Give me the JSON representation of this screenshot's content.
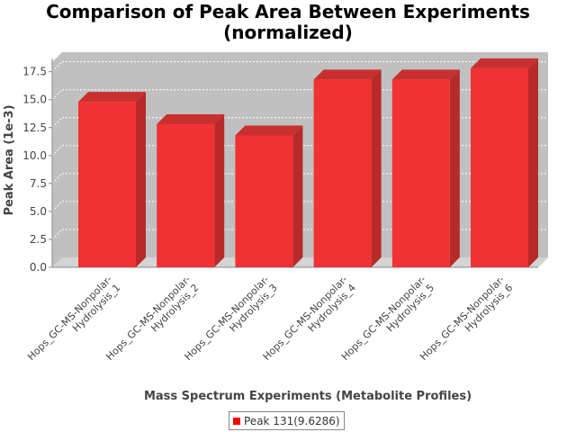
{
  "chart_data": {
    "type": "bar",
    "title_line1": "Comparison of Peak Area Between Experiments",
    "title_line2": "(normalized)",
    "xlabel": "Mass Spectrum Experiments (Metabolite Profiles)",
    "ylabel": "Peak Area (1e-3)",
    "categories": [
      [
        "Hops_GC-MS-Nonpolar-",
        "Hydrolysis_1"
      ],
      [
        "Hops_GC-MS-Nonpolar-",
        "Hydrolysis_2"
      ],
      [
        "Hops_GC-MS-Nonpolar-",
        "Hydrolysis_3"
      ],
      [
        "Hops_GC-MS-Nonpolar-",
        "Hydrolysis_4"
      ],
      [
        "Hops_GC-MS-Nonpolar-",
        "Hydrolysis_5"
      ],
      [
        "Hops_GC-MS-Nonpolar-",
        "Hydrolysis_6"
      ]
    ],
    "series": [
      {
        "name": "Peak 131(9.6286)",
        "values": [
          14.8,
          12.8,
          11.8,
          16.8,
          16.8,
          17.8
        ],
        "color": "#ff0000"
      }
    ],
    "yticks": [
      "0.0",
      "2.5",
      "5.0",
      "7.5",
      "10.0",
      "12.5",
      "15.0",
      "17.5"
    ],
    "ylim": [
      0,
      19.2
    ],
    "grid": true,
    "legend_position": "bottom-center"
  }
}
